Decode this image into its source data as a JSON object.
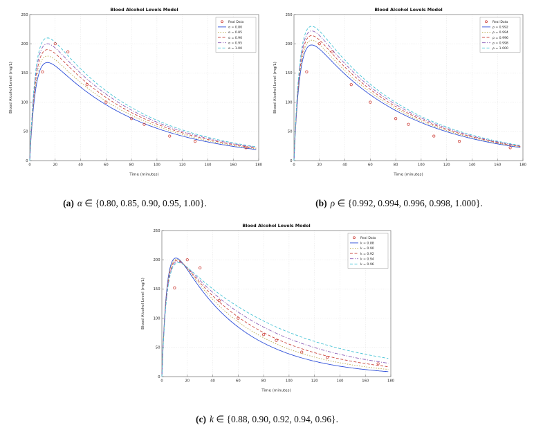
{
  "page": {
    "background": "#ffffff"
  },
  "figures": [
    {
      "id": "a",
      "caption": {
        "label": "(a)",
        "symbol": "α",
        "rest": " ∈ {0.80, 0.85, 0.90, 0.95, 1.00}."
      }
    },
    {
      "id": "b",
      "caption": {
        "label": "(b)",
        "symbol": "ρ",
        "rest": " ∈ {0.992, 0.994, 0.996, 0.998, 1.000}."
      }
    },
    {
      "id": "c",
      "caption": {
        "label": "(c)",
        "symbol": "k",
        "rest": " ∈ {0.88, 0.90, 0.92, 0.94, 0.96}."
      }
    }
  ],
  "chart_data": [
    {
      "type": "line",
      "title": "Blood Alcohol Levels Model",
      "xlabel": "Time (minutes)",
      "ylabel": "Blood Alcohol Level (mg/L)",
      "xlim": [
        0,
        180
      ],
      "ylim": [
        0,
        250
      ],
      "xticks": [
        0,
        20,
        40,
        60,
        80,
        100,
        120,
        140,
        160,
        180
      ],
      "yticks": [
        0,
        50,
        100,
        150,
        200,
        250
      ],
      "grid": true,
      "legend_position": "top-right",
      "scatter": {
        "name": "Real Data",
        "color": "#cc3a33",
        "points": [
          [
            10,
            152
          ],
          [
            20,
            200
          ],
          [
            30,
            186
          ],
          [
            45,
            130
          ],
          [
            60,
            100
          ],
          [
            80,
            72
          ],
          [
            90,
            62
          ],
          [
            110,
            42
          ],
          [
            130,
            33
          ],
          [
            170,
            22
          ]
        ]
      },
      "series": [
        {
          "name": "α = 0.80",
          "color": "#2e4fd8",
          "dash": "",
          "model": {
            "peak": 168,
            "kd": 0.0137,
            "kr": 0.21
          }
        },
        {
          "name": "α = 0.85",
          "color": "#b9a84c",
          "dash": "1.5,2",
          "model": {
            "peak": 179,
            "kd": 0.0137,
            "kr": 0.21
          }
        },
        {
          "name": "α = 0.90",
          "color": "#c9463d",
          "dash": "4,2.5",
          "model": {
            "peak": 190,
            "kd": 0.0137,
            "kr": 0.21
          }
        },
        {
          "name": "α = 0.95",
          "color": "#8a5bb5",
          "dash": "5,2,1.2,2",
          "model": {
            "peak": 200,
            "kd": 0.0137,
            "kr": 0.21
          }
        },
        {
          "name": "α = 1.00",
          "color": "#45c3d5",
          "dash": "4,2.5",
          "model": {
            "peak": 210,
            "kd": 0.0137,
            "kr": 0.21
          }
        }
      ]
    },
    {
      "type": "line",
      "title": "Blood Alcohol Levels Model",
      "xlabel": "Time (minutes)",
      "ylabel": "Blood Alcohol Level (mg/L)",
      "xlim": [
        0,
        180
      ],
      "ylim": [
        0,
        250
      ],
      "xticks": [
        0,
        20,
        40,
        60,
        80,
        100,
        120,
        140,
        160,
        180
      ],
      "yticks": [
        0,
        50,
        100,
        150,
        200,
        250
      ],
      "grid": true,
      "legend_position": "top-right",
      "scatter": {
        "name": "Real Data",
        "color": "#cc3a33",
        "points": [
          [
            10,
            152
          ],
          [
            20,
            200
          ],
          [
            30,
            186
          ],
          [
            45,
            130
          ],
          [
            60,
            100
          ],
          [
            80,
            72
          ],
          [
            90,
            62
          ],
          [
            110,
            42
          ],
          [
            130,
            33
          ],
          [
            170,
            22
          ]
        ]
      },
      "series": [
        {
          "name": "ρ = 0.992",
          "color": "#2e4fd8",
          "dash": "",
          "model": {
            "peak": 198,
            "kd": 0.0137,
            "kr": 0.21
          }
        },
        {
          "name": "ρ = 0.994",
          "color": "#b9a84c",
          "dash": "1.5,2",
          "model": {
            "peak": 206,
            "kd": 0.0137,
            "kr": 0.21
          }
        },
        {
          "name": "ρ = 0.996",
          "color": "#c9463d",
          "dash": "4,2.5",
          "model": {
            "peak": 214,
            "kd": 0.0137,
            "kr": 0.21
          }
        },
        {
          "name": "ρ = 0.998",
          "color": "#8a5bb5",
          "dash": "5,2,1.2,2",
          "model": {
            "peak": 222,
            "kd": 0.0137,
            "kr": 0.21
          }
        },
        {
          "name": "ρ = 1.000",
          "color": "#45c3d5",
          "dash": "4,2.5",
          "model": {
            "peak": 230,
            "kd": 0.0137,
            "kr": 0.21
          }
        }
      ]
    },
    {
      "type": "line",
      "title": "Blood Alcohol Levels Model",
      "xlabel": "Time (minutes)",
      "ylabel": "Blood Alcohol Level (mg/L)",
      "xlim": [
        0,
        180
      ],
      "ylim": [
        0,
        250
      ],
      "xticks": [
        0,
        20,
        40,
        60,
        80,
        100,
        120,
        140,
        160,
        180
      ],
      "yticks": [
        0,
        50,
        100,
        150,
        200,
        250
      ],
      "grid": true,
      "legend_position": "top-right",
      "scatter": {
        "name": "Real Data",
        "color": "#cc3a33",
        "points": [
          [
            10,
            152
          ],
          [
            20,
            200
          ],
          [
            30,
            186
          ],
          [
            45,
            130
          ],
          [
            60,
            100
          ],
          [
            80,
            72
          ],
          [
            90,
            62
          ],
          [
            110,
            42
          ],
          [
            130,
            33
          ],
          [
            170,
            22
          ]
        ]
      },
      "series": [
        {
          "name": "k = 0.88",
          "color": "#2e4fd8",
          "dash": "",
          "model": {
            "peak": 203,
            "kd": 0.0195,
            "kr": 0.25
          }
        },
        {
          "name": "k = 0.90",
          "color": "#b9a84c",
          "dash": "1.5,2",
          "model": {
            "peak": 201,
            "kd": 0.0172,
            "kr": 0.25
          }
        },
        {
          "name": "k = 0.92",
          "color": "#c9463d",
          "dash": "4,2.5",
          "model": {
            "peak": 199,
            "kd": 0.0152,
            "kr": 0.25
          }
        },
        {
          "name": "k = 0.94",
          "color": "#8a5bb5",
          "dash": "5,2,1.2,2",
          "model": {
            "peak": 197,
            "kd": 0.0133,
            "kr": 0.25
          }
        },
        {
          "name": "k = 0.96",
          "color": "#45c3d5",
          "dash": "4,2.5",
          "model": {
            "peak": 195,
            "kd": 0.0114,
            "kr": 0.25
          }
        }
      ]
    }
  ]
}
